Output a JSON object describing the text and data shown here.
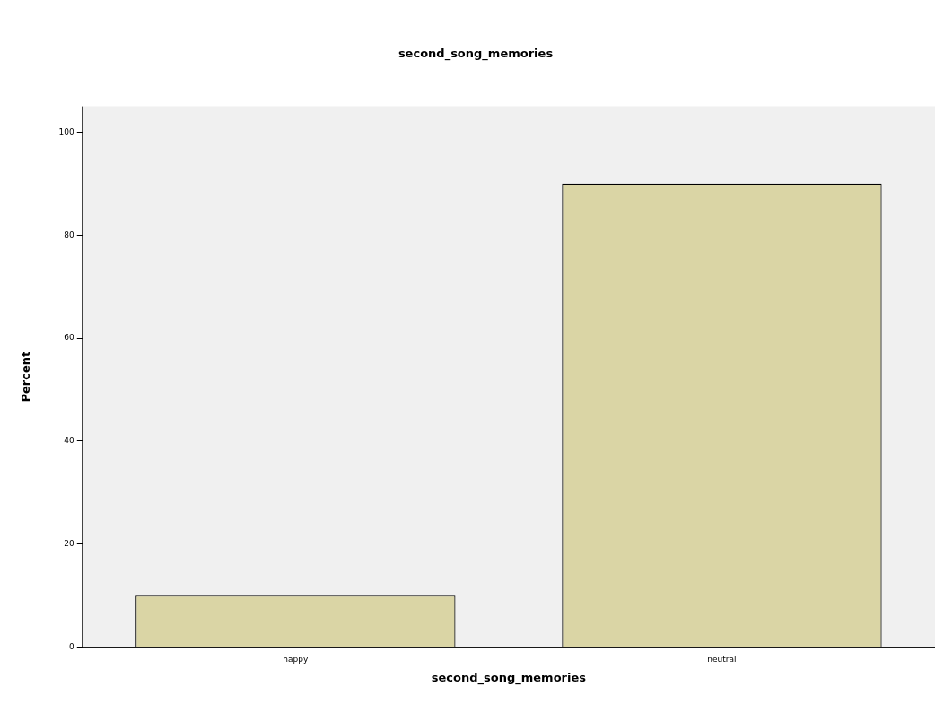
{
  "chart_data": {
    "type": "bar",
    "title": "second_song_memories",
    "xlabel": "second_song_memories",
    "ylabel": "Percent",
    "categories": [
      "happy",
      "neutral"
    ],
    "values": [
      10,
      90
    ],
    "color": "#dad5a5",
    "ylim": [
      0,
      105
    ],
    "yticks": [
      0,
      20,
      40,
      60,
      80,
      100
    ],
    "grid": false,
    "legend": false
  }
}
